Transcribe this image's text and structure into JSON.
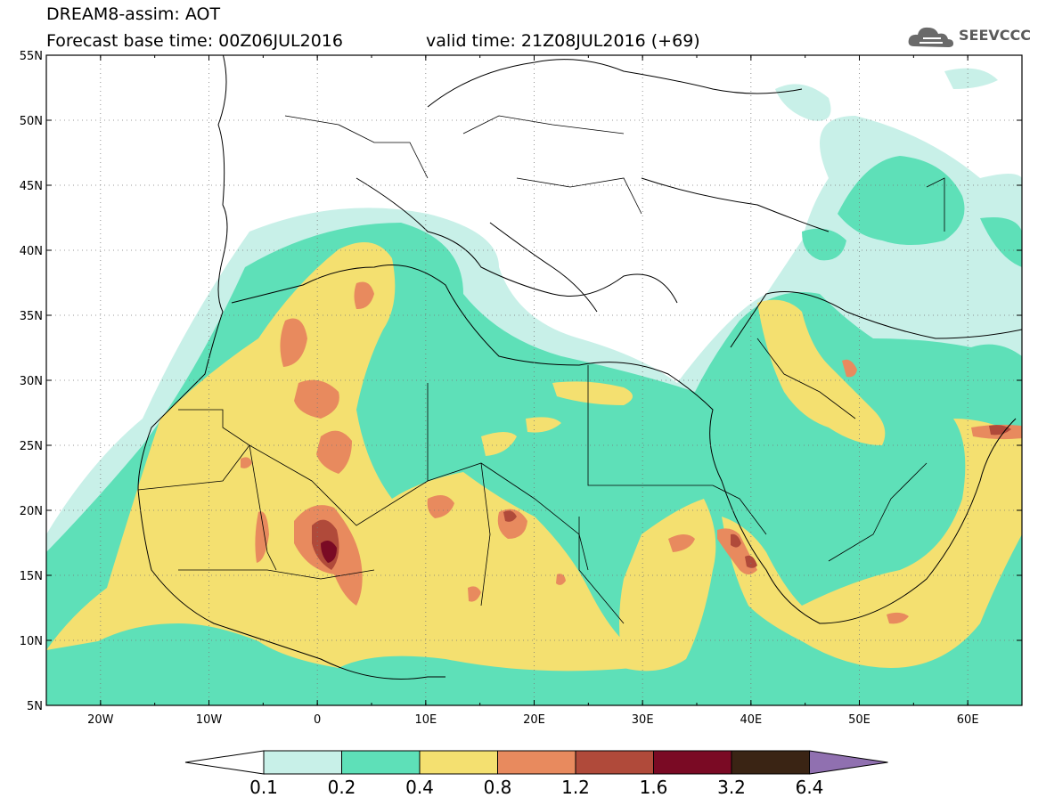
{
  "header": {
    "title": "DREAM8-assim: AOT",
    "base_time_label": "Forecast base time: 00Z06JUL2016",
    "valid_time_label": "valid time: 21Z08JUL2016 (+69)"
  },
  "logo": {
    "icon": "cloud-icon",
    "text": "SEEVCCC"
  },
  "map": {
    "lon_range": [
      -25,
      65
    ],
    "lat_range": [
      5,
      55
    ],
    "lat_ticks": [
      "55N",
      "50N",
      "45N",
      "40N",
      "35N",
      "30N",
      "25N",
      "20N",
      "15N",
      "10N",
      "5N"
    ],
    "lon_ticks": [
      "20W",
      "10W",
      "0",
      "10E",
      "20E",
      "30E",
      "40E",
      "50E",
      "60E"
    ],
    "grid": "dotted"
  },
  "colorbar": {
    "levels": [
      "0.1",
      "0.2",
      "0.4",
      "0.8",
      "1.2",
      "1.6",
      "3.2",
      "6.4"
    ],
    "colors": [
      "#ffffff",
      "#c8f0e8",
      "#5ee0b8",
      "#f4e070",
      "#e88a5e",
      "#b04a3a",
      "#7a0a24",
      "#3a2414",
      "#9070b0"
    ]
  }
}
